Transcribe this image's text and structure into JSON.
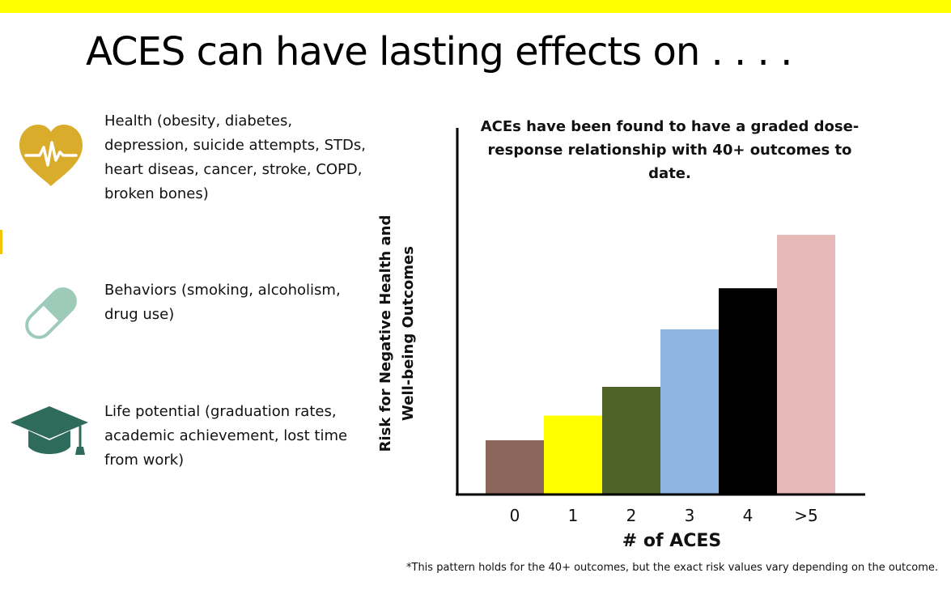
{
  "slide": {
    "title": "ACES can have lasting effects on . . . .",
    "top_bar_color": "#ffff00"
  },
  "effects": [
    {
      "icon": "heart-pulse-icon",
      "icon_color": "#d9ad2b",
      "text": "Health (obesity, diabetes, depression, suicide attempts, STDs, heart diseas, cancer, stroke, COPD, broken bones)"
    },
    {
      "icon": "pill-capsule-icon",
      "icon_color": "#9ecbb9",
      "text": "Behaviors (smoking, alcoholism, drug use)"
    },
    {
      "icon": "graduation-cap-icon",
      "icon_color": "#2f6b5a",
      "text": "Life potential (graduation rates, academic achievement, lost time from work)"
    }
  ],
  "chart_data": {
    "type": "bar",
    "title": "ACEs have been found to have a graded dose-response relationship with 40+ outcomes to date.",
    "xlabel": "# of ACES",
    "ylabel": "Risk for Negative Health and Well-being Outcomes",
    "categories": [
      "0",
      "1",
      "2",
      "3",
      "4",
      ">5"
    ],
    "values": [
      1.3,
      1.9,
      2.6,
      4.0,
      5.0,
      6.3
    ],
    "colors": [
      "#8b675b",
      "#ffff00",
      "#4f6228",
      "#8eb4e3",
      "#000000",
      "#e6b9b8"
    ],
    "ylim": [
      0,
      6.5
    ],
    "y_ticks_shown": false,
    "grid": false,
    "legend": "none"
  },
  "footnote": "*This pattern holds for the 40+ outcomes, but the exact risk values vary depending on the outcome."
}
